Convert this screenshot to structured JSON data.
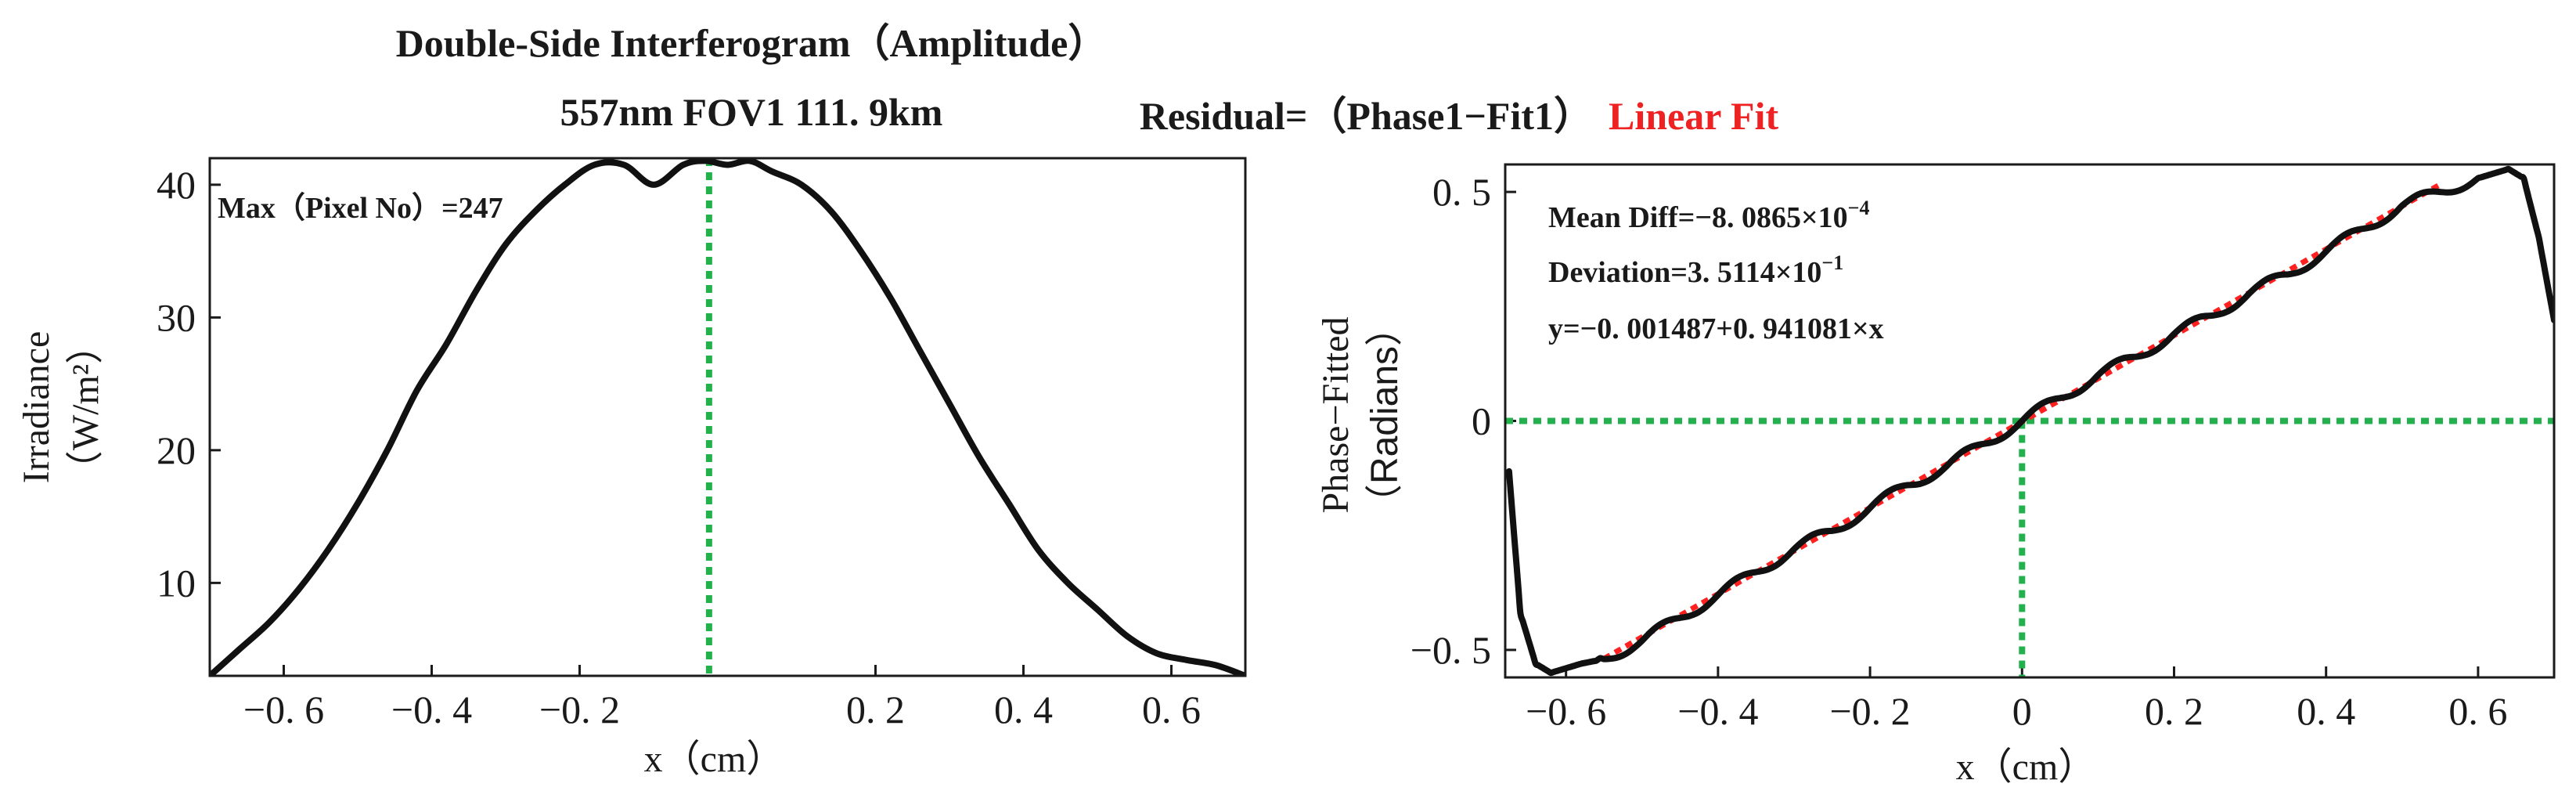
{
  "chart_data": [
    {
      "type": "line",
      "title_lines": [
        "Double-Side Interferogram（Amplitude）",
        "557nm FOV1 111. 9km"
      ],
      "xlabel": "x（cm）",
      "ylabel_lines": [
        "Irradiance",
        "（W/m²）"
      ],
      "xlim": [
        -0.7,
        0.7
      ],
      "ylim": [
        3,
        42
      ],
      "xticks": [
        {
          "v": -0.6,
          "label": "−0. 6"
        },
        {
          "v": -0.4,
          "label": "−0. 4"
        },
        {
          "v": -0.2,
          "label": "−0. 2"
        },
        {
          "v": 0.2,
          "label": "0. 2"
        },
        {
          "v": 0.4,
          "label": "0. 4"
        },
        {
          "v": 0.6,
          "label": "0. 6"
        }
      ],
      "yticks": [
        {
          "v": 10,
          "label": "10"
        },
        {
          "v": 20,
          "label": "20"
        },
        {
          "v": 30,
          "label": "30"
        },
        {
          "v": 40,
          "label": "40"
        }
      ],
      "annotation": "Max（Pixel No）=247",
      "marker_x": -0.025,
      "series": [
        {
          "name": "Amplitude",
          "color": "#111111",
          "x": [
            -0.7,
            -0.66,
            -0.62,
            -0.58,
            -0.54,
            -0.5,
            -0.46,
            -0.42,
            -0.38,
            -0.34,
            -0.3,
            -0.26,
            -0.22,
            -0.18,
            -0.14,
            -0.1,
            -0.06,
            -0.03,
            0.0,
            0.03,
            0.06,
            0.1,
            0.14,
            0.18,
            0.22,
            0.26,
            0.3,
            0.34,
            0.38,
            0.42,
            0.46,
            0.5,
            0.54,
            0.58,
            0.62,
            0.66,
            0.7
          ],
          "y": [
            3,
            5,
            7,
            9.5,
            12.5,
            16,
            20,
            24.5,
            28,
            32,
            35.5,
            38,
            40,
            41.5,
            41.5,
            40,
            41.5,
            41.8,
            41.5,
            41.8,
            41,
            40,
            38,
            35,
            31.5,
            27.5,
            23.5,
            19.5,
            16,
            12.5,
            10,
            8,
            6,
            4.7,
            4.2,
            3.8,
            3
          ]
        }
      ]
    },
    {
      "type": "line",
      "title_prefix": "Residual=（Phase1−Fit1）",
      "title_suffix": "Linear Fit",
      "xlabel": "x（cm）",
      "ylabel_lines": [
        "Phase−Fitted",
        "（Radians）"
      ],
      "xlim": [
        -0.68,
        0.7
      ],
      "ylim": [
        -0.56,
        0.56
      ],
      "xticks": [
        {
          "v": -0.6,
          "label": "−0. 6"
        },
        {
          "v": -0.4,
          "label": "−0. 4"
        },
        {
          "v": -0.2,
          "label": "−0. 2"
        },
        {
          "v": 0,
          "label": "0"
        },
        {
          "v": 0.2,
          "label": "0. 2"
        },
        {
          "v": 0.4,
          "label": "0. 4"
        },
        {
          "v": 0.6,
          "label": "0. 6"
        }
      ],
      "yticks": [
        {
          "v": -0.5,
          "label": "−0. 5"
        },
        {
          "v": 0,
          "label": "0"
        },
        {
          "v": 0.5,
          "label": "0. 5"
        }
      ],
      "annotations": [
        {
          "base": "Mean Diff=−8. 0865×10",
          "sup": "−4"
        },
        {
          "base": "Deviation=3. 5114×10",
          "sup": "−1"
        },
        {
          "base": "y=−0. 001487+0. 941081×x",
          "sup": ""
        }
      ],
      "fit": {
        "intercept": -0.001487,
        "slope": 0.941081,
        "x_range": [
          -0.55,
          0.55
        ],
        "color": "#ff2020"
      },
      "zero_lines": true,
      "series": [
        {
          "name": "Residual",
          "color": "#111111",
          "x": [
            -0.675,
            -0.66,
            -0.64,
            -0.62,
            -0.6,
            -0.58,
            -0.55,
            -0.5,
            -0.45,
            -0.4,
            -0.35,
            -0.3,
            -0.25,
            -0.2,
            -0.15,
            -0.1,
            -0.05,
            0.0,
            0.05,
            0.1,
            0.15,
            0.2,
            0.25,
            0.3,
            0.35,
            0.4,
            0.45,
            0.5,
            0.55,
            0.6,
            0.62,
            0.64,
            0.66,
            0.68,
            0.7
          ],
          "y": [
            -0.11,
            -0.42,
            -0.53,
            -0.55,
            -0.54,
            -0.53,
            -0.52,
            -0.48,
            -0.43,
            -0.38,
            -0.33,
            -0.28,
            -0.24,
            -0.19,
            -0.14,
            -0.1,
            -0.05,
            0.0,
            0.05,
            0.1,
            0.14,
            0.19,
            0.23,
            0.28,
            0.32,
            0.37,
            0.42,
            0.47,
            0.5,
            0.53,
            0.54,
            0.55,
            0.53,
            0.4,
            0.22
          ]
        }
      ]
    }
  ],
  "colors": {
    "marker_green": "#22b14c",
    "fit_red": "#ff2020",
    "title_red": "#ee2222",
    "curve": "#111111"
  }
}
